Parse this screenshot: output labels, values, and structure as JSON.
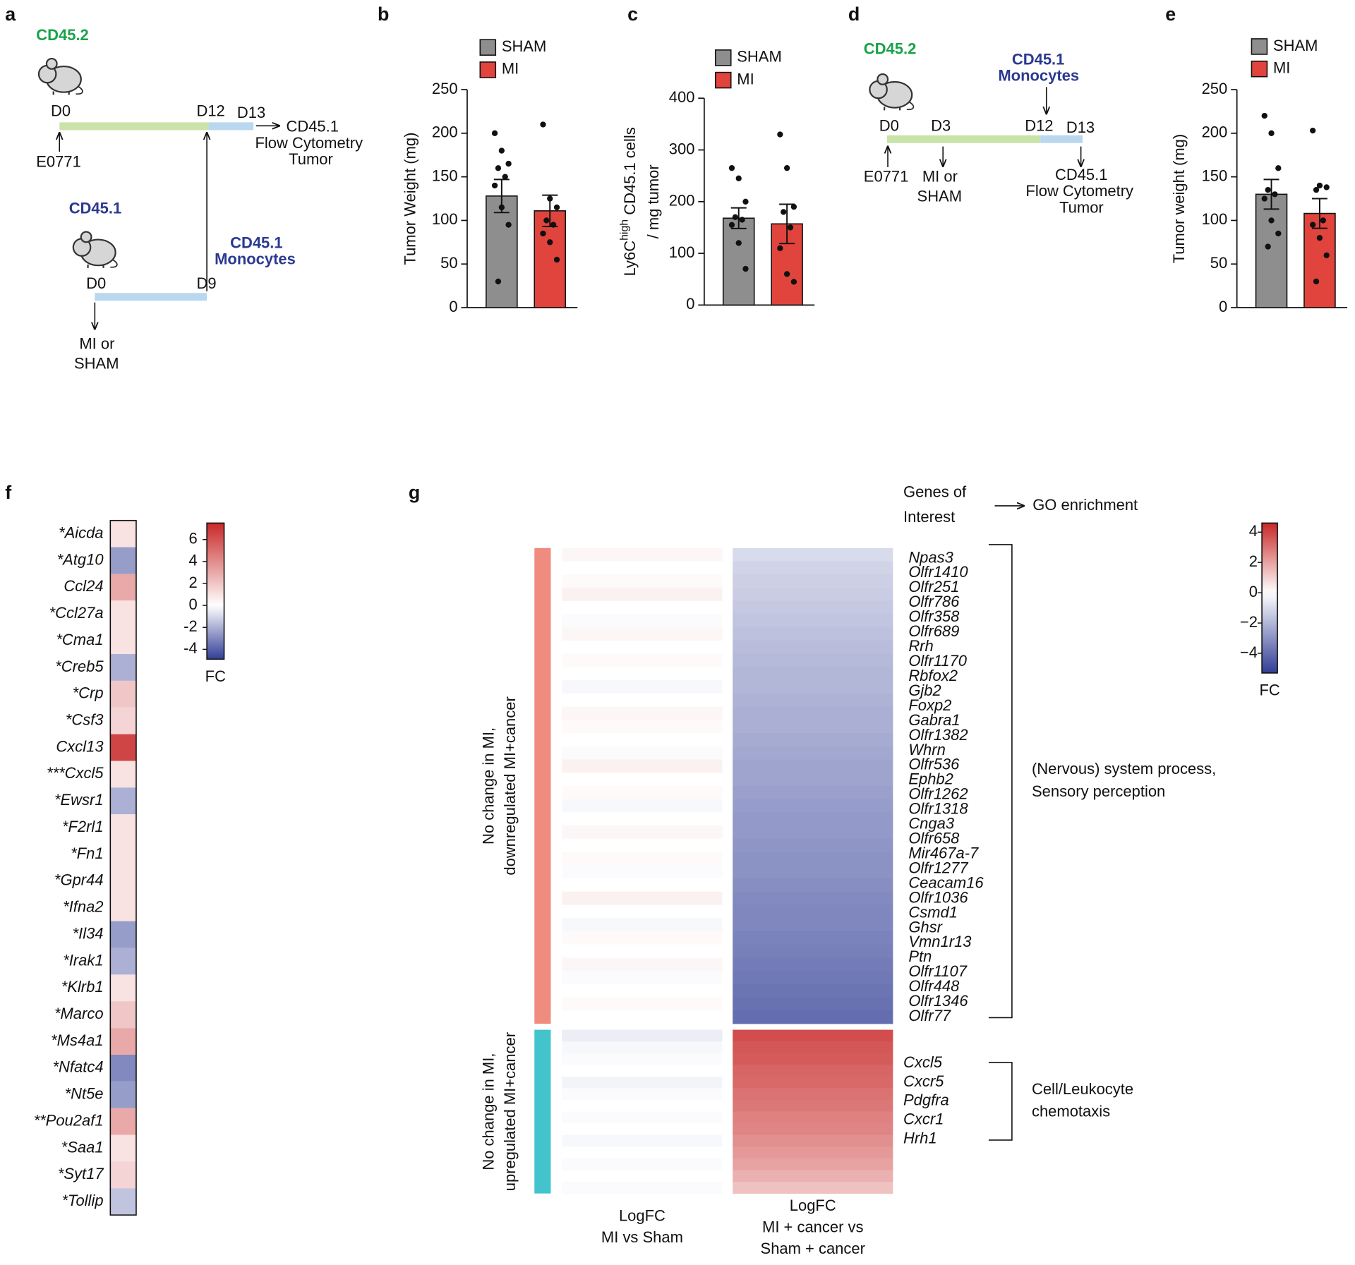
{
  "diagrams": [
    {
      "panel": "a",
      "donor_strain": "CD45.2",
      "recipient_days": [
        "D0",
        "D12",
        "D13"
      ],
      "readout": [
        "CD45.1",
        "Flow Cytometry",
        "Tumor"
      ],
      "tumor": "E0771",
      "monocyte_strain": "CD45.1",
      "transfer": [
        "CD45.1",
        "Monocytes"
      ],
      "donor_days": [
        "D0",
        "D9"
      ],
      "treatment": [
        "MI or",
        "SHAM"
      ]
    },
    {
      "panel": "d",
      "strain": "CD45.2",
      "transfer": [
        "CD45.1",
        "Monocytes"
      ],
      "days": [
        "D0",
        "D3",
        "D12",
        "D13"
      ],
      "tumor": "E0771",
      "treatment": [
        "MI or",
        "SHAM"
      ],
      "readout": [
        "CD45.1",
        "Flow Cytometry",
        "Tumor"
      ]
    }
  ],
  "chart_data": [
    {
      "type": "bar",
      "panel": "b",
      "y_label": "Tumor Weight (mg)",
      "ylim": [
        0,
        250
      ],
      "yticks": [
        0,
        50,
        100,
        150,
        200,
        250
      ],
      "series": [
        {
          "name": "SHAM",
          "color": "#8e8e8e",
          "values": [
            128
          ],
          "errors": [
            19
          ],
          "points": [
            200,
            180,
            165,
            160,
            150,
            140,
            115,
            95,
            30
          ]
        },
        {
          "name": "MI",
          "color": "#e0443c",
          "values": [
            111
          ],
          "errors": [
            18
          ],
          "points": [
            210,
            125,
            115,
            100,
            95,
            85,
            75,
            55
          ]
        }
      ]
    },
    {
      "type": "bar",
      "panel": "c",
      "y_label": [
        "Ly6C",
        "high",
        "CD45.1 cells",
        "/ mg tumor"
      ],
      "ylim": [
        0,
        400
      ],
      "yticks": [
        0,
        100,
        200,
        300,
        400
      ],
      "series": [
        {
          "name": "SHAM",
          "color": "#8e8e8e",
          "values": [
            168
          ],
          "errors": [
            20
          ],
          "points": [
            265,
            245,
            200,
            170,
            165,
            155,
            120,
            70
          ]
        },
        {
          "name": "MI",
          "color": "#e0443c",
          "values": [
            157
          ],
          "errors": [
            38
          ],
          "points": [
            330,
            265,
            190,
            180,
            150,
            110,
            60,
            45
          ]
        }
      ]
    },
    {
      "type": "bar",
      "panel": "e",
      "y_label": "Tumor weight (mg)",
      "ylim": [
        0,
        250
      ],
      "yticks": [
        0,
        50,
        100,
        150,
        200,
        250
      ],
      "series": [
        {
          "name": "SHAM",
          "color": "#8e8e8e",
          "values": [
            130
          ],
          "errors": [
            17
          ],
          "points": [
            220,
            200,
            160,
            135,
            130,
            125,
            100,
            85,
            70
          ]
        },
        {
          "name": "MI",
          "color": "#e0443c",
          "values": [
            108
          ],
          "errors": [
            17
          ],
          "points": [
            203,
            140,
            138,
            135,
            100,
            95,
            80,
            60,
            30
          ]
        }
      ]
    },
    {
      "type": "heatmap",
      "panel": "f",
      "rows": [
        "*Aicda",
        "*Atg10",
        "Ccl24",
        "*Ccl27a",
        "*Cma1",
        "*Creb5",
        "*Crp",
        "*Csf3",
        "Cxcl13",
        "***Cxcl5",
        "*Ewsr1",
        "*F2rl1",
        "*Fn1",
        "*Gpr44",
        "*Ifna2",
        "*Il34",
        "*Irak1",
        "*Klrb1",
        "*Marco",
        "*Ms4a1",
        "*Nfatc4",
        "*Nt5e",
        "**Pou2af1",
        "*Saa1",
        "*Syt17",
        "*Tollip"
      ],
      "values": [
        1,
        -2.5,
        3,
        1,
        1,
        -2,
        2,
        1.5,
        6.5,
        1,
        -2,
        1,
        1,
        1,
        1,
        -2.5,
        -2,
        1,
        2,
        3,
        -3,
        -2.5,
        3,
        1,
        1.5,
        -1.5
      ],
      "clim": [
        -4.9,
        7.5
      ],
      "colorbar_ticks": [
        6,
        4,
        2,
        0,
        -2,
        -4
      ],
      "colorbar_label": "FC"
    },
    {
      "type": "grouped_heatmap",
      "panel": "g",
      "header": [
        "Genes of",
        "Interest"
      ],
      "go_label": "GO enrichment",
      "columns": [
        [
          "LogFC",
          "MI vs Sham"
        ],
        [
          "LogFC",
          "MI + cancer vs",
          "Sham + cancer"
        ]
      ],
      "clim": [
        -5.3,
        4.6
      ],
      "colorbar_ticks": [
        4,
        2,
        0,
        {
          "value": -2,
          "label": "−2"
        },
        {
          "value": -4,
          "label": "−4"
        }
      ],
      "colorbar_label": "FC",
      "groups": [
        {
          "label": [
            "No change in MI,",
            "downregulated MI+cancer"
          ],
          "color": "#f08b80",
          "values": [
            [
              0.2,
              0,
              0.1,
              0.3,
              0,
              -0.1,
              0.2,
              0,
              0.1,
              0,
              -0.2,
              0,
              0.2,
              0.1,
              0,
              -0.1,
              0.3,
              0,
              0.1,
              -0.2,
              0,
              0.2,
              0,
              0.1,
              -0.1,
              0,
              0.3,
              0,
              -0.2,
              0.1,
              0,
              0.2,
              -0.1,
              0,
              0.1,
              0
            ],
            [
              -1.0,
              -1.2,
              -1.3,
              -1.4,
              -1.5,
              -1.6,
              -1.7,
              -1.8,
              -1.9,
              -2.0,
              -2.0,
              -2.1,
              -2.2,
              -2.2,
              -2.3,
              -2.4,
              -2.5,
              -2.5,
              -2.6,
              -2.7,
              -2.8,
              -2.8,
              -2.9,
              -3.0,
              -3.0,
              -3.1,
              -3.2,
              -3.3,
              -3.3,
              -3.4,
              -3.5,
              -3.6,
              -3.7,
              -3.8,
              -3.9,
              -4.0
            ]
          ],
          "gene_labels": [
            "Npas3",
            "Olfr1410",
            "Olfr251",
            "Olfr786",
            "Olfr358",
            "Olfr689",
            "Rrh",
            "Olfr1170",
            "Rbfox2",
            "Gjb2",
            "Foxp2",
            "Gabra1",
            "Olfr1382",
            "Whrn",
            "Olfr536",
            "Ephb2",
            "Olfr1262",
            "Olfr1318",
            "Cnga3",
            "Olfr658",
            "Mir467a-7",
            "Olfr1277",
            "Ceacam16",
            "Olfr1036",
            "Csmd1",
            "Ghsr",
            "Vmn1r13",
            "Ptn",
            "Olfr1107",
            "Olfr448",
            "Olfr1346",
            "Olfr77"
          ],
          "annotation": [
            "(Nervous) system process,",
            "Sensory perception"
          ]
        },
        {
          "label": [
            "No change in MI,",
            "upregulated MI+cancer"
          ],
          "color": "#43c3cc",
          "values": [
            [
              -0.5,
              -0.2,
              -0.1,
              0,
              -0.3,
              -0.1,
              0,
              -0.1,
              0,
              -0.2,
              0,
              -0.1,
              0,
              -0.1
            ],
            [
              3.8,
              3.6,
              3.5,
              3.3,
              3.2,
              3.0,
              2.9,
              2.7,
              2.6,
              2.4,
              2.2,
              2.0,
              1.7,
              1.3
            ]
          ],
          "gene_labels": [
            "Cxcl5",
            "Cxcr5",
            "Pdgfra",
            "Cxcr1",
            "Hrh1"
          ],
          "annotation": [
            "Cell/Leukocyte",
            "chemotaxis"
          ]
        }
      ]
    }
  ]
}
